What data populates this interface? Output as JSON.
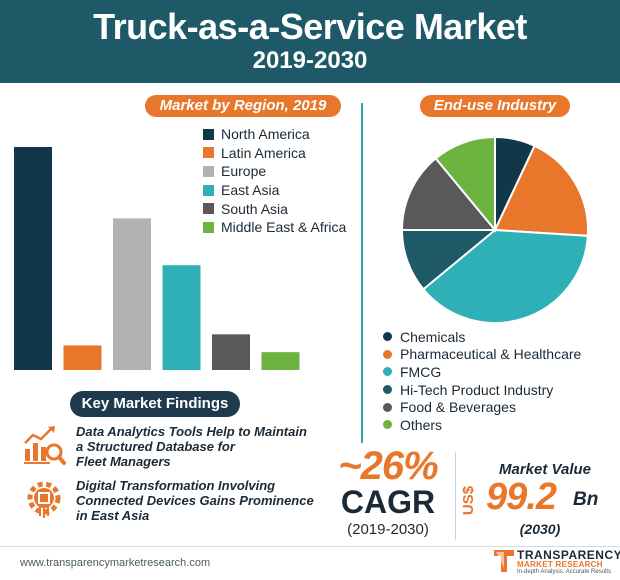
{
  "header": {
    "title": "Truck-as-a-Service Market",
    "years": "2019-2030"
  },
  "colors": {
    "header_bg": "#1e5968",
    "accent": "#e8762b",
    "dark_navy": "#12364a",
    "teal": "#2fb0b6"
  },
  "chart_data": [
    {
      "type": "bar",
      "title": "Market by Region, 2019",
      "categories": [
        "North America",
        "Latin America",
        "Europe",
        "East Asia",
        "South Asia",
        "Middle East & Africa"
      ],
      "values": [
        100,
        11,
        68,
        47,
        16,
        8
      ],
      "colors": [
        "#12364a",
        "#e8762b",
        "#b2b2b2",
        "#2fb0b6",
        "#595959",
        "#6db33f"
      ],
      "xlabel": "",
      "ylabel": "",
      "ylim": [
        0,
        100
      ],
      "grid": false,
      "legend": "top-right"
    },
    {
      "type": "pie",
      "title": "End-use Industry",
      "labels": [
        "Chemicals",
        "Pharmaceutical & Healthcare",
        "FMCG",
        "Hi-Tech Product Industry",
        "Food & Beverages",
        "Others"
      ],
      "values": [
        7,
        19,
        38,
        11,
        14,
        11
      ],
      "colors": [
        "#12364a",
        "#e8762b",
        "#2fb0b6",
        "#1e5968",
        "#595959",
        "#6db33f"
      ],
      "legend": "bottom"
    }
  ],
  "findings": {
    "heading": "Key Market Findings",
    "items": [
      {
        "line1": "Data Analytics Tools Help to Maintain",
        "line2": "a Structured Database for",
        "line3": "Fleet Managers",
        "icon": "analytics-chart-icon"
      },
      {
        "line1": "Digital Transformation Involving",
        "line2": "Connected Devices Gains Prominence",
        "line3": "in East Asia",
        "icon": "digital-gear-icon"
      }
    ]
  },
  "cagr": {
    "value": "~26%",
    "label": "CAGR",
    "period": "(2019-2030)"
  },
  "market_value": {
    "label": "Market Value",
    "currency": "US$",
    "value": "99.2",
    "unit": "Bn",
    "year": "(2030)"
  },
  "footer": {
    "url": "www.transparencymarketresearch.com",
    "logo_line1": "TRANSPARENCY",
    "logo_line2": "MARKET RESEARCH",
    "logo_line3": "In-depth Analysis. Accurate Results"
  }
}
